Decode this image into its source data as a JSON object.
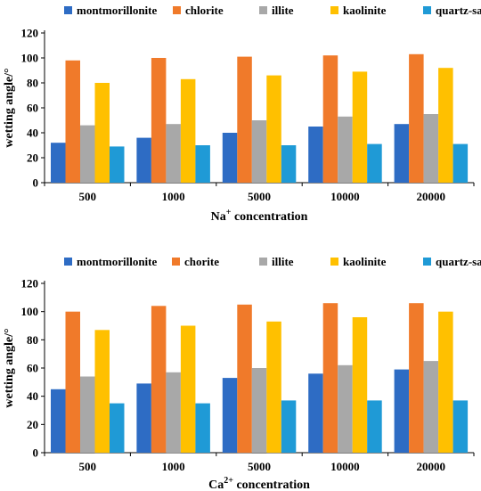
{
  "colors": {
    "montmorillonite": "#2e6cc4",
    "chlorite": "#f07a2a",
    "illite": "#a8a8a8",
    "kaolinite": "#ffc000",
    "quartz_sand": "#1f9ad6"
  },
  "chart_data": [
    {
      "type": "bar",
      "legend": [
        "montmorillonite",
        "chlorite",
        "illite",
        "kaolinite",
        "quartz-sand"
      ],
      "categories": [
        "500",
        "1000",
        "5000",
        "10000",
        "20000"
      ],
      "series": [
        {
          "name": "montmorillonite",
          "color": "#2e6cc4",
          "values": [
            32,
            36,
            40,
            45,
            47
          ]
        },
        {
          "name": "chlorite",
          "color": "#f07a2a",
          "values": [
            98,
            100,
            101,
            102,
            103
          ]
        },
        {
          "name": "illite",
          "color": "#a8a8a8",
          "values": [
            46,
            47,
            50,
            53,
            55
          ]
        },
        {
          "name": "kaolinite",
          "color": "#ffc000",
          "values": [
            80,
            83,
            86,
            89,
            92
          ]
        },
        {
          "name": "quartz-sand",
          "color": "#1f9ad6",
          "values": [
            29,
            30,
            30,
            31,
            31
          ]
        }
      ],
      "ylim": [
        0,
        120
      ],
      "yticks": [
        "0",
        "20",
        "40",
        "60",
        "80",
        "100",
        "120"
      ],
      "ylabel": "wetting angle/°",
      "xlabel_main": "Na",
      "xlabel_sup": "+",
      "xlabel_rest": " concentration",
      "legend_position": "top",
      "grid": false
    },
    {
      "type": "bar",
      "legend": [
        "montmorillonite",
        "chorite",
        "illite",
        "kaolinite",
        "quartz-sand"
      ],
      "categories": [
        "500",
        "1000",
        "5000",
        "10000",
        "20000"
      ],
      "series": [
        {
          "name": "montmorillonite",
          "color": "#2e6cc4",
          "values": [
            45,
            49,
            53,
            56,
            59
          ]
        },
        {
          "name": "chorite",
          "color": "#f07a2a",
          "values": [
            100,
            104,
            105,
            106,
            106
          ]
        },
        {
          "name": "illite",
          "color": "#a8a8a8",
          "values": [
            54,
            57,
            60,
            62,
            65
          ]
        },
        {
          "name": "kaolinite",
          "color": "#ffc000",
          "values": [
            87,
            90,
            93,
            96,
            100
          ]
        },
        {
          "name": "quartz-sand",
          "color": "#1f9ad6",
          "values": [
            35,
            35,
            37,
            37,
            37
          ]
        }
      ],
      "ylim": [
        0,
        120
      ],
      "yticks": [
        "0",
        "20",
        "40",
        "60",
        "80",
        "100",
        "120"
      ],
      "ylabel": "wetting angle/°",
      "xlabel_main": "Ca",
      "xlabel_sup": "2+",
      "xlabel_rest": " concentration",
      "legend_position": "top",
      "grid": false
    }
  ]
}
